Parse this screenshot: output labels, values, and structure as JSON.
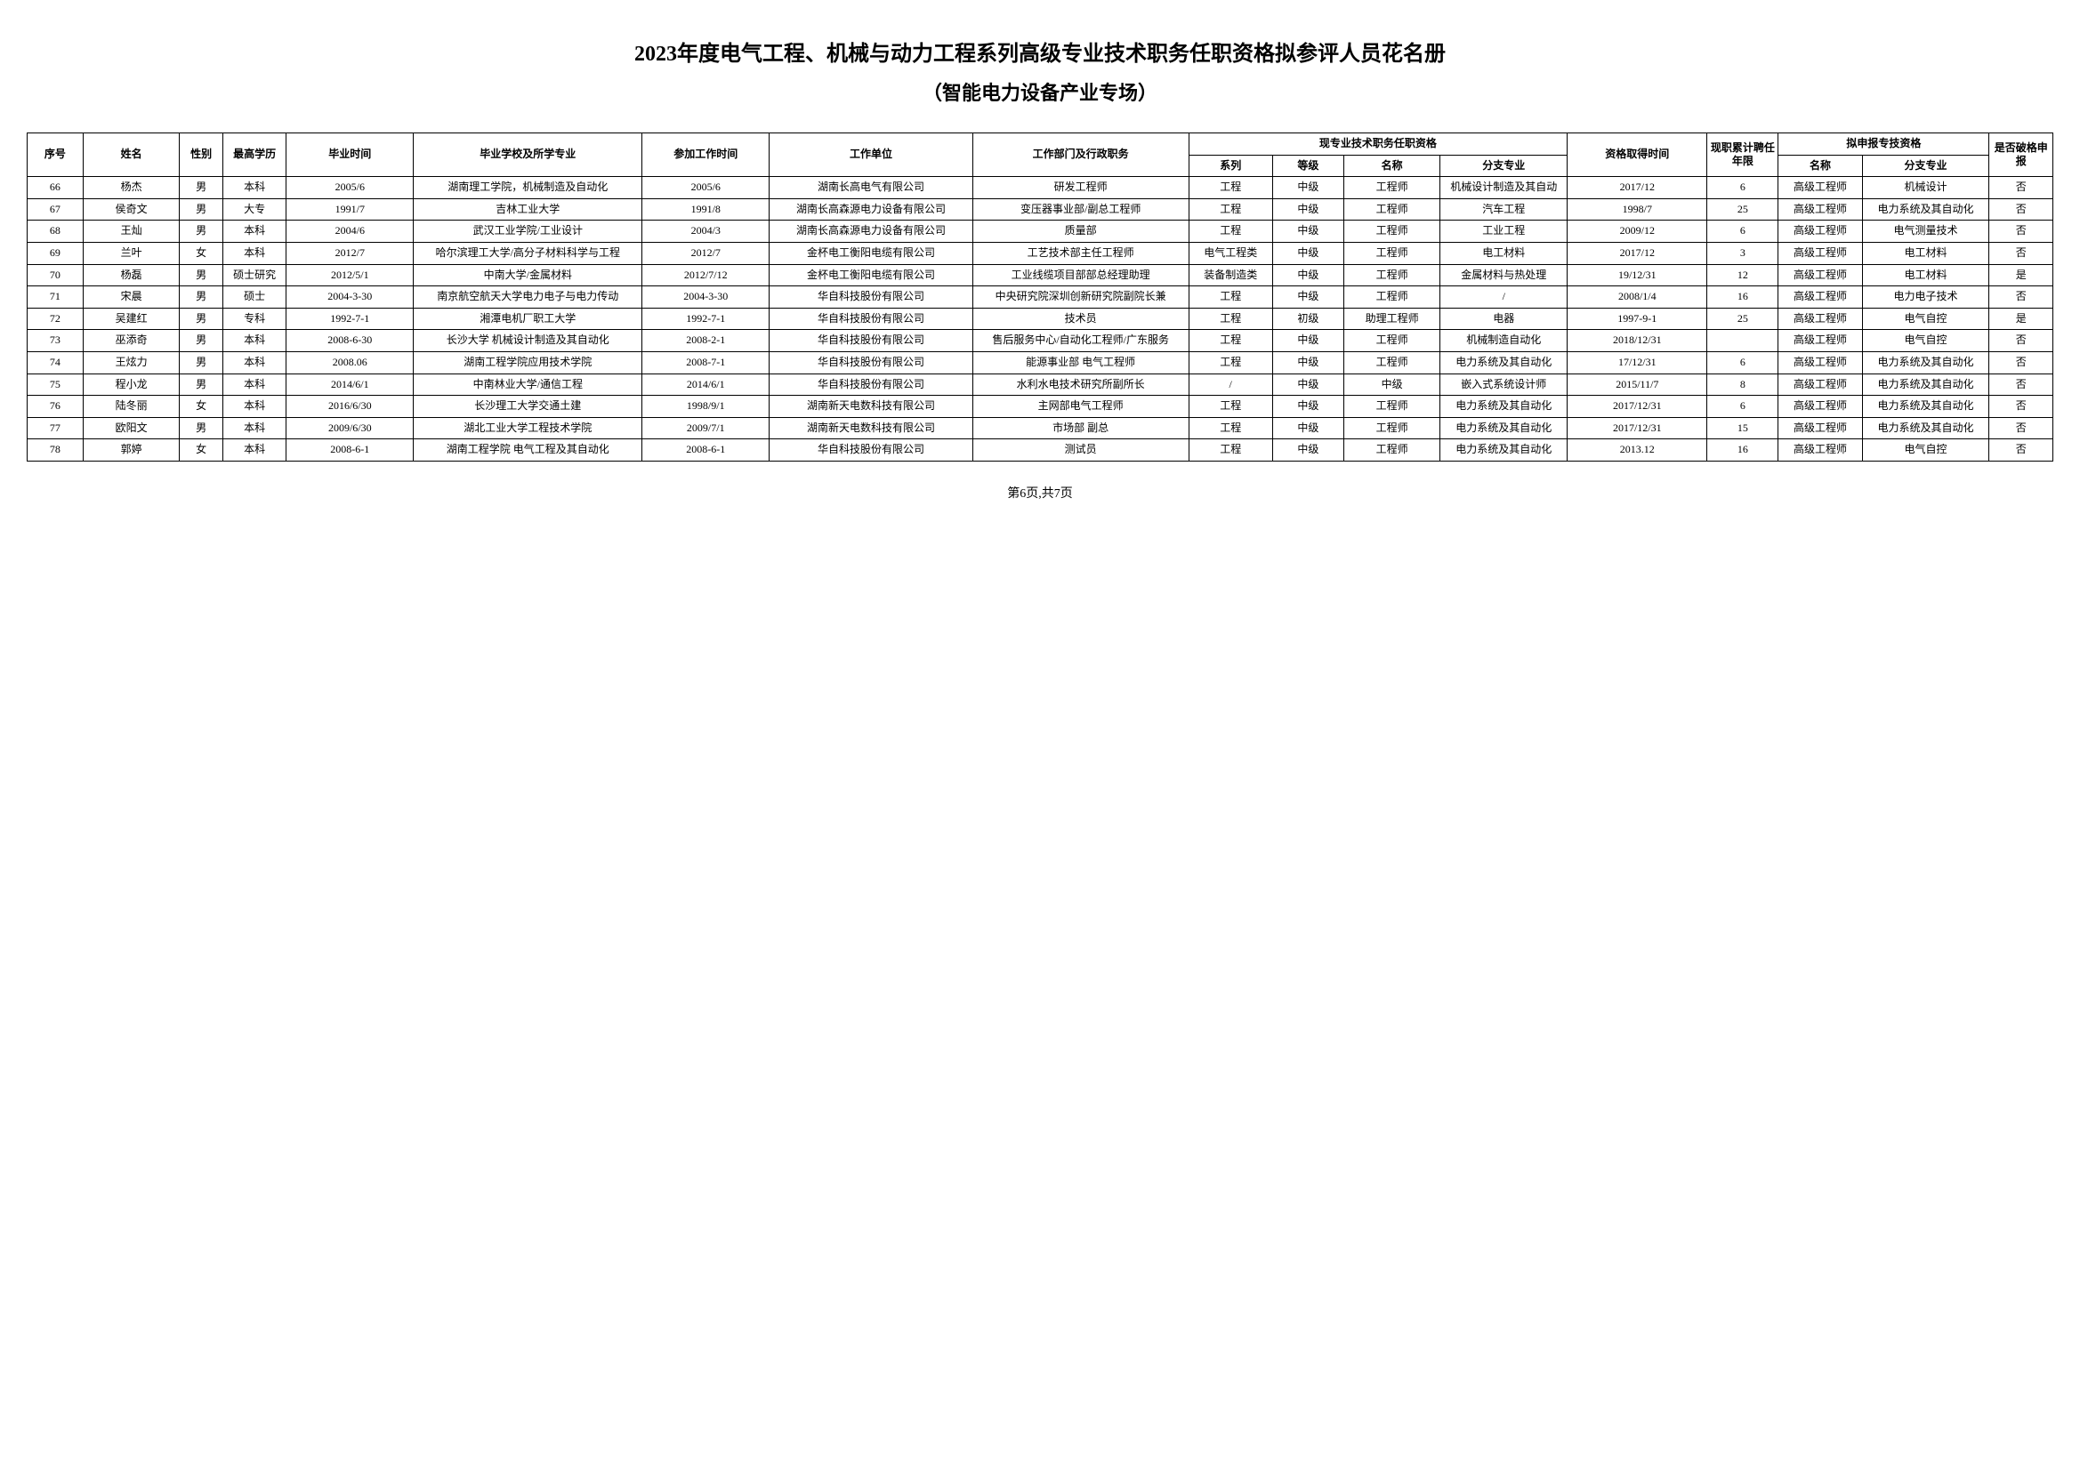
{
  "title_main": "2023年度电气工程、机械与动力工程系列高级专业技术职务任职资格拟参评人员花名册",
  "title_sub": "（智能电力设备产业专场）",
  "footer": "第6页,共7页",
  "headers": {
    "seq": "序号",
    "name": "姓名",
    "sex": "性别",
    "edu": "最高学历",
    "grad_time": "毕业时间",
    "school": "毕业学校及所学专业",
    "join_time": "参加工作时间",
    "unit": "工作单位",
    "dept": "工作部门及行政职务",
    "current_group": "现专业技术职务任职资格",
    "series": "系列",
    "level": "等级",
    "tname": "名称",
    "branch": "分支专业",
    "obtain": "资格取得时间",
    "years": "现职累计聘任年限",
    "apply_group": "拟申报专技资格",
    "apply_name": "名称",
    "apply_branch": "分支专业",
    "break": "是否破格申报"
  },
  "rows": [
    {
      "seq": "66",
      "name": "杨杰",
      "sex": "男",
      "edu": "本科",
      "grad": "2005/6",
      "school": "湖南理工学院，机械制造及自动化",
      "join": "2005/6",
      "unit": "湖南长高电气有限公司",
      "dept": "研发工程师",
      "series": "工程",
      "level": "中级",
      "tname": "工程师",
      "branch": "机械设计制造及其自动",
      "obtain": "2017/12",
      "years": "6",
      "apply": "高级工程师",
      "applyb": "机械设计",
      "break": "否"
    },
    {
      "seq": "67",
      "name": "侯奇文",
      "sex": "男",
      "edu": "大专",
      "grad": "1991/7",
      "school": "吉林工业大学",
      "join": "1991/8",
      "unit": "湖南长高森源电力设备有限公司",
      "dept": "变压器事业部/副总工程师",
      "series": "工程",
      "level": "中级",
      "tname": "工程师",
      "branch": "汽车工程",
      "obtain": "1998/7",
      "years": "25",
      "apply": "高级工程师",
      "applyb": "电力系统及其自动化",
      "break": "否"
    },
    {
      "seq": "68",
      "name": "王灿",
      "sex": "男",
      "edu": "本科",
      "grad": "2004/6",
      "school": "武汉工业学院/工业设计",
      "join": "2004/3",
      "unit": "湖南长高森源电力设备有限公司",
      "dept": "质量部",
      "series": "工程",
      "level": "中级",
      "tname": "工程师",
      "branch": "工业工程",
      "obtain": "2009/12",
      "years": "6",
      "apply": "高级工程师",
      "applyb": "电气测量技术",
      "break": "否"
    },
    {
      "seq": "69",
      "name": "兰叶",
      "sex": "女",
      "edu": "本科",
      "grad": "2012/7",
      "school": "哈尔滨理工大学/高分子材料科学与工程",
      "join": "2012/7",
      "unit": "金杯电工衡阳电缆有限公司",
      "dept": "工艺技术部主任工程师",
      "series": "电气工程类",
      "level": "中级",
      "tname": "工程师",
      "branch": "电工材料",
      "obtain": "2017/12",
      "years": "3",
      "apply": "高级工程师",
      "applyb": "电工材料",
      "break": "否"
    },
    {
      "seq": "70",
      "name": "杨磊",
      "sex": "男",
      "edu": "硕士研究",
      "grad": "2012/5/1",
      "school": "中南大学/金属材料",
      "join": "2012/7/12",
      "unit": "金杯电工衡阳电缆有限公司",
      "dept": "工业线缆项目部部总经理助理",
      "series": "装备制造类",
      "level": "中级",
      "tname": "工程师",
      "branch": "金属材料与热处理",
      "obtain": "19/12/31",
      "years": "12",
      "apply": "高级工程师",
      "applyb": "电工材料",
      "break": "是"
    },
    {
      "seq": "71",
      "name": "宋晨",
      "sex": "男",
      "edu": "硕士",
      "grad": "2004-3-30",
      "school": "南京航空航天大学电力电子与电力传动",
      "join": "2004-3-30",
      "unit": "华自科技股份有限公司",
      "dept": "中央研究院深圳创新研究院副院长兼",
      "series": "工程",
      "level": "中级",
      "tname": "工程师",
      "branch": "/",
      "obtain": "2008/1/4",
      "years": "16",
      "apply": "高级工程师",
      "applyb": "电力电子技术",
      "break": "否"
    },
    {
      "seq": "72",
      "name": "吴建红",
      "sex": "男",
      "edu": "专科",
      "grad": "1992-7-1",
      "school": "湘潭电机厂职工大学",
      "join": "1992-7-1",
      "unit": "华自科技股份有限公司",
      "dept": "技术员",
      "series": "工程",
      "level": "初级",
      "tname": "助理工程师",
      "branch": "电器",
      "obtain": "1997-9-1",
      "years": "25",
      "apply": "高级工程师",
      "applyb": "电气自控",
      "break": "是"
    },
    {
      "seq": "73",
      "name": "巫添奇",
      "sex": "男",
      "edu": "本科",
      "grad": "2008-6-30",
      "school": "长沙大学 机械设计制造及其自动化",
      "join": "2008-2-1",
      "unit": "华自科技股份有限公司",
      "dept": "售后服务中心/自动化工程师/广东服务",
      "series": "工程",
      "level": "中级",
      "tname": "工程师",
      "branch": "机械制造自动化",
      "obtain": "2018/12/31",
      "years": "",
      "apply": "高级工程师",
      "applyb": "电气自控",
      "break": "否"
    },
    {
      "seq": "74",
      "name": "王炫力",
      "sex": "男",
      "edu": "本科",
      "grad": "2008.06",
      "school": "湖南工程学院应用技术学院",
      "join": "2008-7-1",
      "unit": "华自科技股份有限公司",
      "dept": "能源事业部  电气工程师",
      "series": "工程",
      "level": "中级",
      "tname": "工程师",
      "branch": "电力系统及其自动化",
      "obtain": "17/12/31",
      "years": "6",
      "apply": "高级工程师",
      "applyb": "电力系统及其自动化",
      "break": "否"
    },
    {
      "seq": "75",
      "name": "程小龙",
      "sex": "男",
      "edu": "本科",
      "grad": "2014/6/1",
      "school": "中南林业大学/通信工程",
      "join": "2014/6/1",
      "unit": "华自科技股份有限公司",
      "dept": "水利水电技术研究所副所长",
      "series": "/",
      "level": "中级",
      "tname": "中级",
      "branch": "嵌入式系统设计师",
      "obtain": "2015/11/7",
      "years": "8",
      "apply": "高级工程师",
      "applyb": "电力系统及其自动化",
      "break": "否"
    },
    {
      "seq": "76",
      "name": "陆冬丽",
      "sex": "女",
      "edu": "本科",
      "grad": "2016/6/30",
      "school": "长沙理工大学交通土建",
      "join": "1998/9/1",
      "unit": "湖南新天电数科技有限公司",
      "dept": "主网部电气工程师",
      "series": "工程",
      "level": "中级",
      "tname": "工程师",
      "branch": "电力系统及其自动化",
      "obtain": "2017/12/31",
      "years": "6",
      "apply": "高级工程师",
      "applyb": "电力系统及其自动化",
      "break": "否"
    },
    {
      "seq": "77",
      "name": "欧阳文",
      "sex": "男",
      "edu": "本科",
      "grad": "2009/6/30",
      "school": "湖北工业大学工程技术学院",
      "join": "2009/7/1",
      "unit": "湖南新天电数科技有限公司",
      "dept": "市场部 副总",
      "series": "工程",
      "level": "中级",
      "tname": "工程师",
      "branch": "电力系统及其自动化",
      "obtain": "2017/12/31",
      "years": "15",
      "apply": "高级工程师",
      "applyb": "电力系统及其自动化",
      "break": "否"
    },
    {
      "seq": "78",
      "name": "郭婷",
      "sex": "女",
      "edu": "本科",
      "grad": "2008-6-1",
      "school": "湖南工程学院 电气工程及其自动化",
      "join": "2008-6-1",
      "unit": "华自科技股份有限公司",
      "dept": "测试员",
      "series": "工程",
      "level": "中级",
      "tname": "工程师",
      "branch": "电力系统及其自动化",
      "obtain": "2013.12",
      "years": "16",
      "apply": "高级工程师",
      "applyb": "电气自控",
      "break": "否"
    }
  ]
}
